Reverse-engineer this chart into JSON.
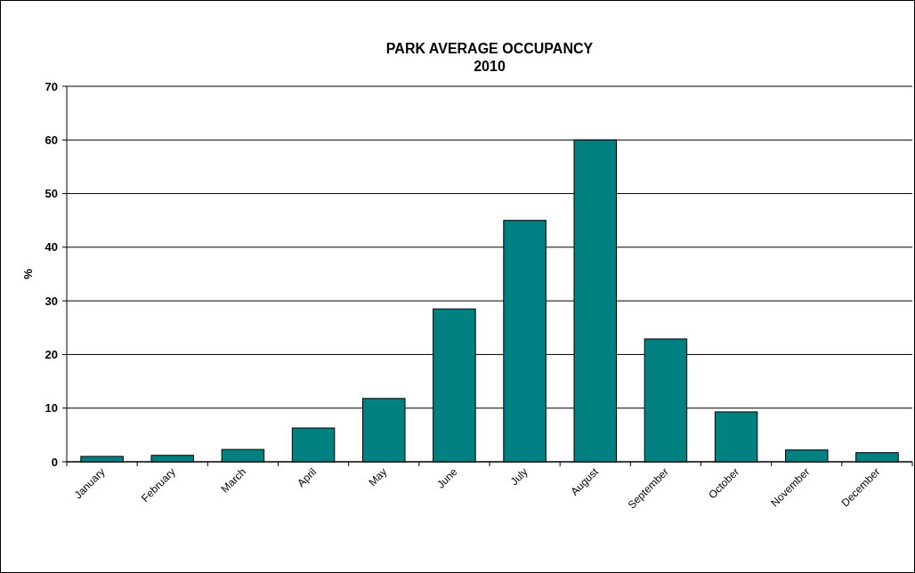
{
  "chart_data": {
    "type": "bar",
    "title": "PARK AVERAGE OCCUPANCY\n2010",
    "ylabel": "%",
    "categories": [
      "January",
      "February",
      "March",
      "April",
      "May",
      "June",
      "July",
      "August",
      "September",
      "October",
      "November",
      "December"
    ],
    "values": [
      1.0,
      1.2,
      2.3,
      6.3,
      11.8,
      28.5,
      45,
      60,
      22.9,
      9.3,
      2.2,
      1.7
    ],
    "color": "#008080",
    "ylim": [
      0,
      70
    ],
    "yticks": [
      0,
      10,
      20,
      30,
      40,
      50,
      60,
      70
    ],
    "grid": "y"
  }
}
